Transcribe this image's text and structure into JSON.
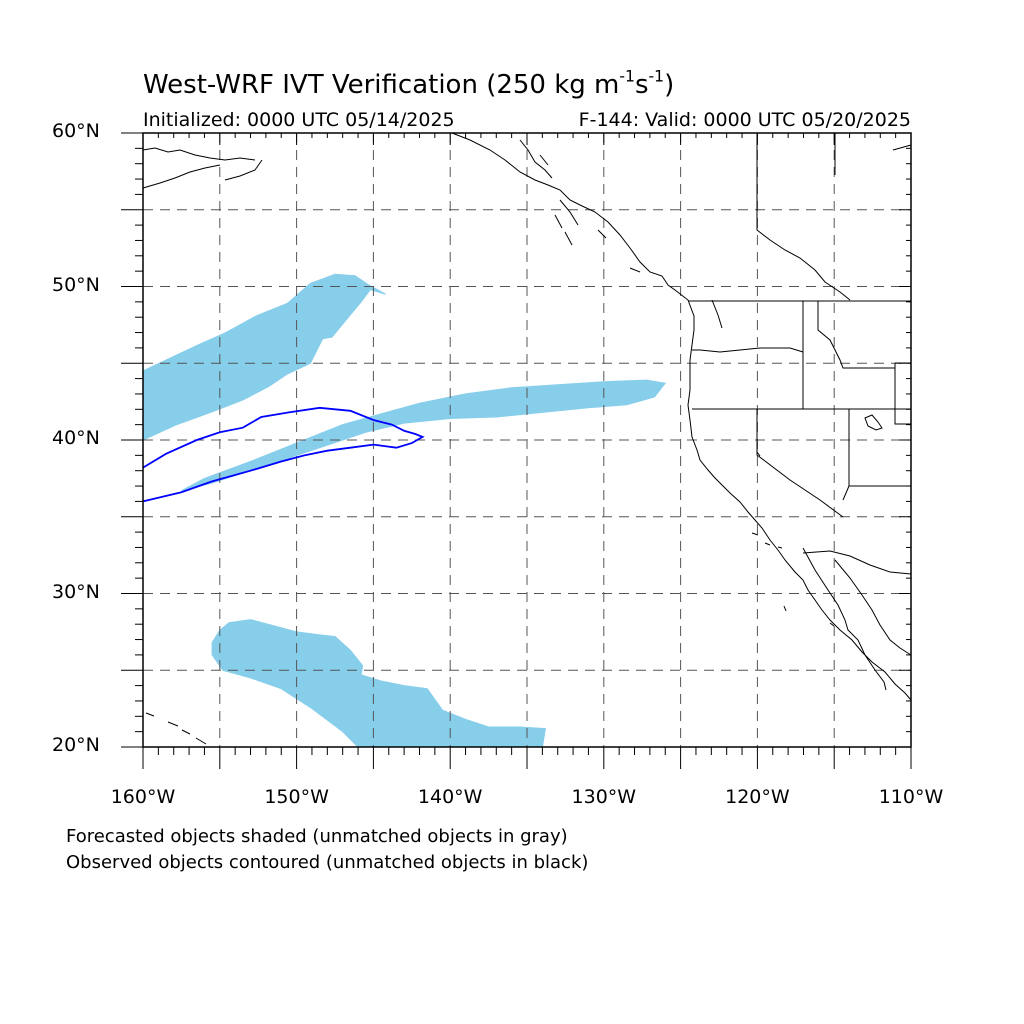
{
  "title": {
    "text": "West-WRF IVT Verification (250 kg m",
    "exp1": "-1",
    "mid": "s",
    "exp2": "-1",
    "close": ")"
  },
  "initialized": "Initialized: 0000 UTC 05/14/2025",
  "valid": "F-144: Valid: 0000 UTC 05/20/2025",
  "footnotes": [
    "Forecasted objects shaded (unmatched objects in gray)",
    "Observed objects contoured (unmatched objects in black)"
  ],
  "map": {
    "lon_range": [
      -160,
      -110
    ],
    "lat_range": [
      20,
      60
    ],
    "lat_labels": [
      "20°N",
      "30°N",
      "40°N",
      "50°N",
      "60°N"
    ],
    "lon_labels": [
      "160°W",
      "150°W",
      "140°W",
      "130°W",
      "120°W",
      "110°W"
    ],
    "grid_style": "dashed",
    "grid_lons": [
      -155,
      -150,
      -145,
      -140,
      -135,
      -130,
      -125,
      -120,
      -115
    ],
    "grid_lats": [
      25,
      30,
      35,
      40,
      45,
      50,
      55
    ],
    "colors": {
      "forecast_fill": "#87ceeb",
      "observed_contour": "#0000ff",
      "coastline": "#000000",
      "grid": "#555555"
    }
  },
  "forecast_objects": [
    {
      "name": "forecast-object-north",
      "polygon": [
        [
          -160,
          40
        ],
        [
          -157.8,
          41
        ],
        [
          -155.6,
          41.8
        ],
        [
          -153.5,
          42.6
        ],
        [
          -151.8,
          43.5
        ],
        [
          -150.6,
          44.3
        ],
        [
          -149.1,
          45
        ],
        [
          -148.3,
          46.6
        ],
        [
          -147.7,
          46.7
        ],
        [
          -146.8,
          47.8
        ],
        [
          -145.8,
          49
        ],
        [
          -145.2,
          49.8
        ],
        [
          -144.2,
          49.5
        ],
        [
          -145.3,
          50.1
        ],
        [
          -146.2,
          50.7
        ],
        [
          -147.5,
          50.8
        ],
        [
          -149.1,
          50.2
        ],
        [
          -150.6,
          48.9
        ],
        [
          -152.6,
          48.1
        ],
        [
          -154.6,
          47
        ],
        [
          -156.4,
          46.2
        ],
        [
          -158.3,
          45.3
        ],
        [
          -160,
          44.5
        ]
      ]
    },
    {
      "name": "forecast-object-central",
      "polygon": [
        [
          -157.5,
          36.7
        ],
        [
          -155.5,
          37.2
        ],
        [
          -153,
          38
        ],
        [
          -150,
          39
        ],
        [
          -147,
          40
        ],
        [
          -145.5,
          40.5
        ],
        [
          -143,
          41.1
        ],
        [
          -140,
          41.4
        ],
        [
          -137,
          41.5
        ],
        [
          -134,
          41.8
        ],
        [
          -131,
          42.1
        ],
        [
          -128.5,
          42.3
        ],
        [
          -126.7,
          42.8
        ],
        [
          -126,
          43.7
        ],
        [
          -127.2,
          43.9
        ],
        [
          -130,
          43.8
        ],
        [
          -133,
          43.6
        ],
        [
          -136,
          43.4
        ],
        [
          -139,
          43
        ],
        [
          -142,
          42.4
        ],
        [
          -144.5,
          41.7
        ],
        [
          -147,
          41
        ],
        [
          -149,
          40.2
        ],
        [
          -151,
          39.4
        ],
        [
          -153,
          38.6
        ],
        [
          -156,
          37.5
        ]
      ]
    },
    {
      "name": "forecast-object-south",
      "polygon": [
        [
          -155.5,
          26.8
        ],
        [
          -155,
          27.6
        ],
        [
          -154.4,
          28.1
        ],
        [
          -153,
          28.3
        ],
        [
          -151.5,
          27.9
        ],
        [
          -150,
          27.5
        ],
        [
          -148.5,
          27.3
        ],
        [
          -147.5,
          27.2
        ],
        [
          -146.5,
          26.3
        ],
        [
          -145.7,
          25.3
        ],
        [
          -145.8,
          24.7
        ],
        [
          -144.5,
          24.3
        ],
        [
          -143,
          24
        ],
        [
          -141.5,
          23.8
        ],
        [
          -140.5,
          22.4
        ],
        [
          -139,
          21.8
        ],
        [
          -137.5,
          21.3
        ],
        [
          -135.5,
          21.3
        ],
        [
          -133.8,
          21.2
        ],
        [
          -134,
          20
        ],
        [
          -146,
          20
        ],
        [
          -147,
          21
        ],
        [
          -149,
          22.5
        ],
        [
          -151,
          23.8
        ],
        [
          -153,
          24.5
        ],
        [
          -154.8,
          25
        ],
        [
          -155.5,
          26
        ]
      ]
    }
  ],
  "observed_objects": [
    {
      "name": "observed-object-contour",
      "polyline": [
        [
          -160,
          38.2
        ],
        [
          -158.5,
          39.1
        ],
        [
          -156.5,
          40
        ],
        [
          -155,
          40.5
        ],
        [
          -153.5,
          40.8
        ],
        [
          -152.3,
          41.5
        ],
        [
          -150.5,
          41.8
        ],
        [
          -148.5,
          42.1
        ],
        [
          -146.5,
          41.9
        ],
        [
          -145,
          41.3
        ],
        [
          -143.8,
          41
        ],
        [
          -143,
          40.6
        ],
        [
          -142.3,
          40.4
        ],
        [
          -141.8,
          40.2
        ],
        [
          -142.5,
          39.8
        ],
        [
          -143.5,
          39.5
        ],
        [
          -145,
          39.7
        ],
        [
          -146.5,
          39.5
        ],
        [
          -148,
          39.3
        ],
        [
          -149.5,
          39
        ],
        [
          -151,
          38.6
        ],
        [
          -153,
          38
        ],
        [
          -155.5,
          37.3
        ],
        [
          -157.5,
          36.6
        ],
        [
          -160,
          36
        ]
      ]
    }
  ]
}
